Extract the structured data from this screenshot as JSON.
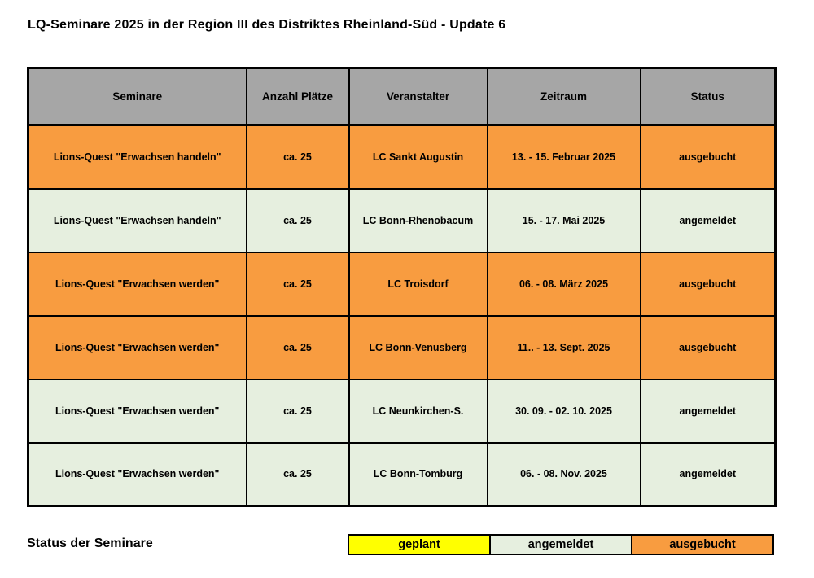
{
  "title": "LQ-Seminare 2025 in der Region III des Distriktes Rheinland-Süd - Update 6",
  "colors": {
    "header_gray": "#a6a6a6",
    "ausgebucht_orange": "#f89c40",
    "angemeldet_green": "#e6efdf",
    "geplant_yellow": "#ffff00"
  },
  "table": {
    "headers": [
      "Seminare",
      "Anzahl Plätze",
      "Veranstalter",
      "Zeitraum",
      "Status"
    ],
    "rows": [
      {
        "seminar": "Lions-Quest \"Erwachsen handeln\"",
        "anzahl": "ca. 25",
        "veranstalter": "LC Sankt Augustin",
        "zeitraum": "13. - 15. Februar 2025",
        "status": "ausgebucht",
        "color": "#f89c40"
      },
      {
        "seminar": "Lions-Quest \"Erwachsen handeln\"",
        "anzahl": "ca. 25",
        "veranstalter": "LC Bonn-Rhenobacum",
        "zeitraum": "15. - 17. Mai 2025",
        "status": "angemeldet",
        "color": "#e6efdf"
      },
      {
        "seminar": "Lions-Quest \"Erwachsen werden\"",
        "anzahl": "ca. 25",
        "veranstalter": "LC Troisdorf",
        "zeitraum": "06. - 08. März 2025",
        "status": "ausgebucht",
        "color": "#f89c40"
      },
      {
        "seminar": "Lions-Quest \"Erwachsen werden\"",
        "anzahl": "ca. 25",
        "veranstalter": "LC Bonn-Venusberg",
        "zeitraum": "11.. - 13. Sept. 2025",
        "status": "ausgebucht",
        "color": "#f89c40"
      },
      {
        "seminar": "Lions-Quest \"Erwachsen werden\"",
        "anzahl": "ca. 25",
        "veranstalter": "LC Neunkirchen-S.",
        "zeitraum": "30. 09. - 02. 10. 2025",
        "status": "angemeldet",
        "color": "#e6efdf"
      },
      {
        "seminar": "Lions-Quest \"Erwachsen werden\"",
        "anzahl": "ca. 25",
        "veranstalter": "LC Bonn-Tomburg",
        "zeitraum": "06. - 08. Nov. 2025",
        "status": "angemeldet",
        "color": "#e6efdf"
      }
    ]
  },
  "legend": {
    "label": "Status der Seminare",
    "items": [
      {
        "label": "geplant",
        "color": "#ffff00"
      },
      {
        "label": "angemeldet",
        "color": "#e6efdf"
      },
      {
        "label": "ausgebucht",
        "color": "#f89c40"
      }
    ]
  }
}
